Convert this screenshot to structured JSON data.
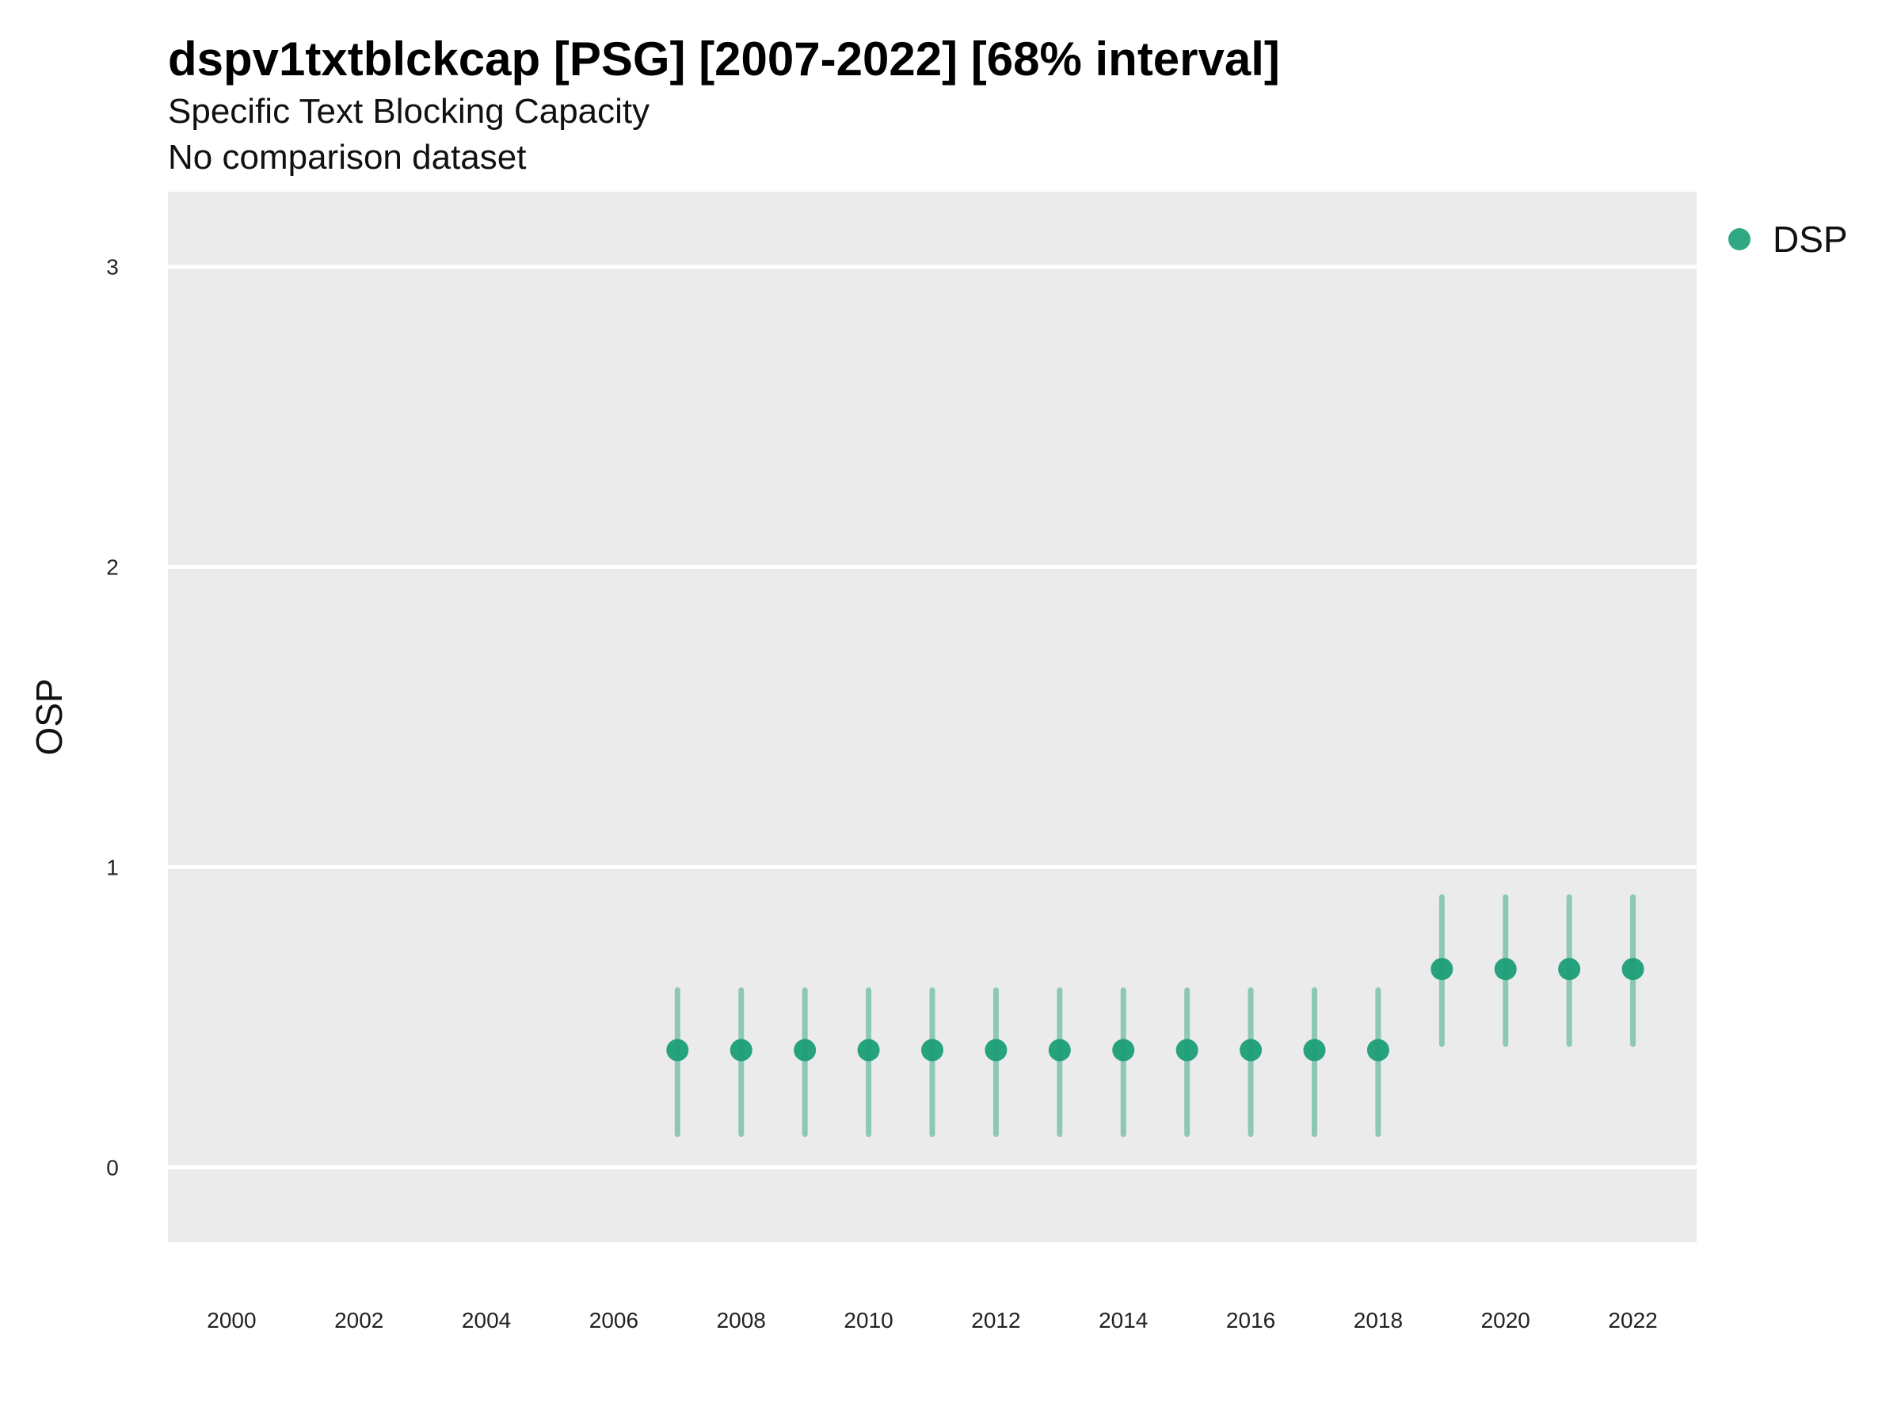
{
  "chart_data": {
    "type": "scatter",
    "title": "dspv1txtblckcap [PSG] [2007-2022] [68% interval]",
    "subtitle": "Specific Text Blocking Capacity",
    "caption": "No comparison dataset",
    "xlabel": "",
    "ylabel": "OSP",
    "xlim": [
      1999,
      2023
    ],
    "ylim": [
      -0.25,
      3.25
    ],
    "x_ticks": [
      2000,
      2002,
      2004,
      2006,
      2008,
      2010,
      2012,
      2014,
      2016,
      2018,
      2020,
      2022
    ],
    "y_ticks": [
      0,
      1,
      2,
      3
    ],
    "grid": true,
    "legend_position": "top-right",
    "colors": {
      "series": "#1b9e77",
      "panel": "#ebebeb",
      "grid": "#ffffff"
    },
    "series": [
      {
        "name": "DSP",
        "x": [
          2007,
          2008,
          2009,
          2010,
          2011,
          2012,
          2013,
          2014,
          2015,
          2016,
          2017,
          2018,
          2019,
          2020,
          2021,
          2022
        ],
        "y": [
          0.39,
          0.39,
          0.39,
          0.39,
          0.39,
          0.39,
          0.39,
          0.39,
          0.39,
          0.39,
          0.39,
          0.39,
          0.66,
          0.66,
          0.66,
          0.66
        ],
        "lower": [
          0.11,
          0.11,
          0.11,
          0.11,
          0.11,
          0.11,
          0.11,
          0.11,
          0.11,
          0.11,
          0.11,
          0.11,
          0.41,
          0.41,
          0.41,
          0.41
        ],
        "upper": [
          0.59,
          0.59,
          0.59,
          0.59,
          0.59,
          0.59,
          0.59,
          0.59,
          0.59,
          0.59,
          0.59,
          0.59,
          0.9,
          0.9,
          0.9,
          0.9
        ]
      }
    ]
  }
}
